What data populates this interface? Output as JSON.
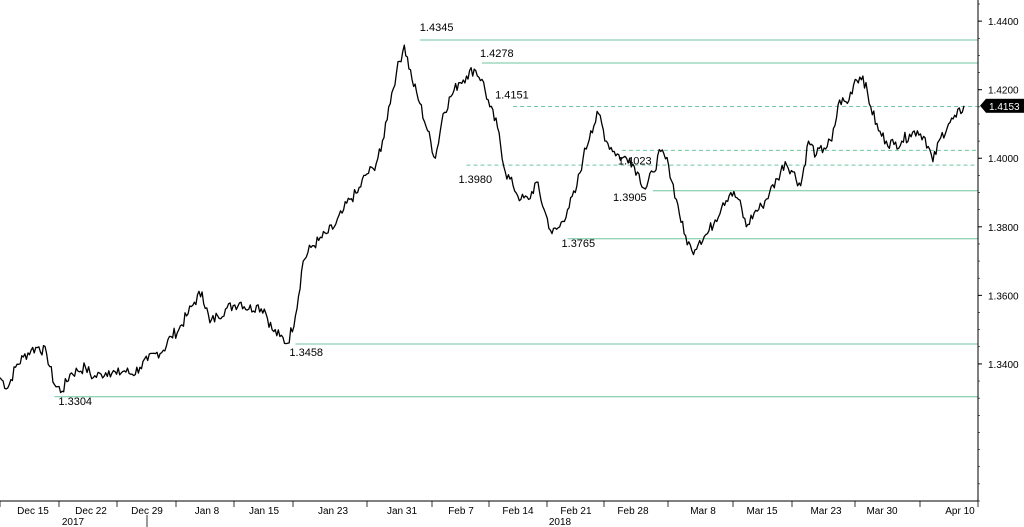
{
  "chart_data": {
    "type": "line",
    "title": "",
    "xlabel": "",
    "ylabel": "",
    "ylim": [
      1.3,
      1.445
    ],
    "y_ticks": [
      "1.3400",
      "1.3600",
      "1.3800",
      "1.4000",
      "1.4200",
      "1.4400"
    ],
    "x_ticks": [
      "Dec 15",
      "Dec 22",
      "Dec 29",
      "Jan 8",
      "Jan 15",
      "Jan 23",
      "Jan 31",
      "Feb 7",
      "Feb 14",
      "Feb 21",
      "Feb 28",
      "Mar 8",
      "Mar 15",
      "Mar 23",
      "Mar 30",
      "Apr 10"
    ],
    "x_years": [
      {
        "label": "2017",
        "after_tick": "Dec 15"
      },
      {
        "label": "2018",
        "after_tick": "Feb 14"
      }
    ],
    "last_value": "1.4153",
    "level_lines": [
      {
        "value": 1.4345,
        "label": "1.4345",
        "style": "solid"
      },
      {
        "value": 1.4278,
        "label": "1.4278",
        "style": "solid"
      },
      {
        "value": 1.4151,
        "label": "1.4151",
        "style": "dashed"
      },
      {
        "value": 1.4023,
        "label": "1.4023",
        "style": "dashed"
      },
      {
        "value": 1.398,
        "label": "1.3980",
        "style": "dashed"
      },
      {
        "value": 1.3905,
        "label": "1.3905",
        "style": "solid"
      },
      {
        "value": 1.3765,
        "label": "1.3765",
        "style": "solid"
      },
      {
        "value": 1.3458,
        "label": "1.3458",
        "style": "solid"
      },
      {
        "value": 1.3304,
        "label": "1.3304",
        "style": "solid"
      }
    ],
    "series": [
      {
        "values": [
          [
            0,
            1.336
          ],
          [
            1,
            1.333
          ],
          [
            2,
            1.339
          ],
          [
            3,
            1.342
          ],
          [
            4,
            1.344
          ],
          [
            5,
            1.345
          ],
          [
            6,
            1.343
          ],
          [
            7,
            1.334
          ],
          [
            8,
            1.332
          ],
          [
            9,
            1.337
          ],
          [
            10,
            1.338
          ],
          [
            11,
            1.339
          ],
          [
            12,
            1.336
          ],
          [
            13,
            1.337
          ],
          [
            14,
            1.338
          ],
          [
            15,
            1.337
          ],
          [
            16,
            1.338
          ],
          [
            17,
            1.337
          ],
          [
            18,
            1.339
          ],
          [
            19,
            1.341
          ],
          [
            20,
            1.343
          ],
          [
            21,
            1.344
          ],
          [
            22,
            1.348
          ],
          [
            23,
            1.35
          ],
          [
            24,
            1.354
          ],
          [
            25,
            1.358
          ],
          [
            26,
            1.361
          ],
          [
            27,
            1.352
          ],
          [
            28,
            1.354
          ],
          [
            29,
            1.356
          ],
          [
            30,
            1.357
          ],
          [
            31,
            1.358
          ],
          [
            32,
            1.356
          ],
          [
            33,
            1.357
          ],
          [
            34,
            1.356
          ],
          [
            35,
            1.35
          ],
          [
            36,
            1.348
          ],
          [
            37,
            1.346
          ],
          [
            38,
            1.354
          ],
          [
            39,
            1.37
          ],
          [
            40,
            1.374
          ],
          [
            41,
            1.376
          ],
          [
            42,
            1.378
          ],
          [
            43,
            1.38
          ],
          [
            44,
            1.384
          ],
          [
            45,
            1.388
          ],
          [
            46,
            1.39
          ],
          [
            47,
            1.395
          ],
          [
            48,
            1.397
          ],
          [
            49,
            1.402
          ],
          [
            50,
            1.415
          ],
          [
            51,
            1.425
          ],
          [
            52,
            1.433
          ],
          [
            53,
            1.423
          ],
          [
            54,
            1.416
          ],
          [
            55,
            1.408
          ],
          [
            56,
            1.4
          ],
          [
            57,
            1.413
          ],
          [
            58,
            1.418
          ],
          [
            59,
            1.422
          ],
          [
            60,
            1.424
          ],
          [
            61,
            1.426
          ],
          [
            62,
            1.423
          ],
          [
            63,
            1.415
          ],
          [
            64,
            1.409
          ],
          [
            65,
            1.396
          ],
          [
            66,
            1.392
          ],
          [
            67,
            1.388
          ],
          [
            68,
            1.388
          ],
          [
            69,
            1.393
          ],
          [
            70,
            1.385
          ],
          [
            71,
            1.378
          ],
          [
            72,
            1.38
          ],
          [
            73,
            1.385
          ],
          [
            74,
            1.39
          ],
          [
            75,
            1.4
          ],
          [
            76,
            1.408
          ],
          [
            77,
            1.413
          ],
          [
            78,
            1.405
          ],
          [
            79,
            1.402
          ],
          [
            80,
            1.4
          ],
          [
            81,
            1.4
          ],
          [
            82,
            1.396
          ],
          [
            83,
            1.391
          ],
          [
            84,
            1.396
          ],
          [
            85,
            1.402
          ],
          [
            86,
            1.398
          ],
          [
            87,
            1.388
          ],
          [
            88,
            1.378
          ],
          [
            89,
            1.373
          ],
          [
            90,
            1.376
          ],
          [
            91,
            1.378
          ],
          [
            92,
            1.382
          ],
          [
            93,
            1.387
          ],
          [
            94,
            1.39
          ],
          [
            95,
            1.388
          ],
          [
            96,
            1.38
          ],
          [
            97,
            1.384
          ],
          [
            98,
            1.386
          ],
          [
            99,
            1.39
          ],
          [
            100,
            1.394
          ],
          [
            101,
            1.399
          ],
          [
            102,
            1.396
          ],
          [
            103,
            1.392
          ],
          [
            104,
            1.405
          ],
          [
            105,
            1.401
          ],
          [
            106,
            1.403
          ],
          [
            107,
            1.405
          ],
          [
            108,
            1.417
          ],
          [
            109,
            1.416
          ],
          [
            110,
            1.423
          ],
          [
            111,
            1.424
          ],
          [
            112,
            1.415
          ],
          [
            113,
            1.408
          ],
          [
            114,
            1.405
          ],
          [
            115,
            1.404
          ],
          [
            116,
            1.405
          ],
          [
            117,
            1.407
          ],
          [
            118,
            1.408
          ],
          [
            119,
            1.406
          ],
          [
            120,
            1.399
          ],
          [
            121,
            1.406
          ],
          [
            122,
            1.41
          ],
          [
            123,
            1.412
          ],
          [
            124,
            1.4153
          ]
        ]
      }
    ]
  }
}
